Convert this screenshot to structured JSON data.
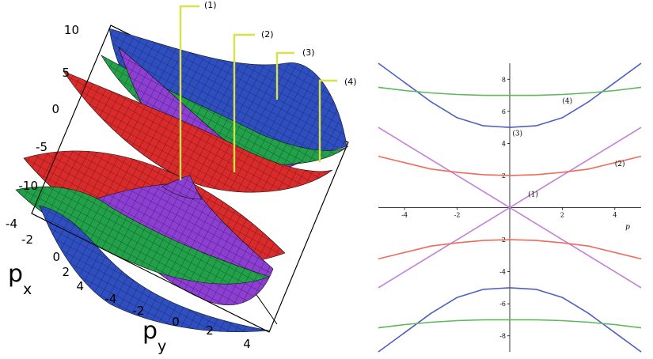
{
  "panel_3d": {
    "callouts": [
      "(1)",
      "(2)",
      "(3)",
      "(4)"
    ],
    "px_ticks": [
      "10",
      "5",
      "0",
      "-5",
      "-10"
    ],
    "px_axis_ticks": [
      "-4",
      "-2",
      "0",
      "2",
      "4"
    ],
    "py_ticks": [
      "-4",
      "-2",
      "0",
      "2",
      "4"
    ],
    "px_label": "p",
    "px_sub": "x",
    "py_label": "p",
    "py_sub": "y",
    "colors": {
      "1": "#8c3fd0",
      "2": "#d92b2b",
      "3": "#2f4fc0",
      "4": "#22a04a",
      "callout_line": "#d6e24a"
    }
  },
  "chart_data": {
    "type": "line",
    "xlabel": "p",
    "xlim": [
      -5,
      5
    ],
    "ylim": [
      -9,
      9
    ],
    "x_ticks": [
      -4,
      -2,
      2,
      4
    ],
    "y_ticks": [
      -8,
      -6,
      -4,
      -2,
      2,
      4,
      6,
      8
    ],
    "grid": false,
    "x": [
      -5,
      -4,
      -3,
      -2,
      -1,
      0,
      1,
      2,
      3,
      4,
      5
    ],
    "series": [
      {
        "name": "(1)",
        "color": "#c47fd8",
        "branch": "upper",
        "values": [
          5.0,
          4.0,
          3.0,
          2.0,
          1.0,
          0.0,
          1.0,
          2.0,
          3.0,
          4.0,
          5.0
        ]
      },
      {
        "name": "(1)",
        "color": "#c47fd8",
        "branch": "lower",
        "values": [
          -5.0,
          -4.0,
          -3.0,
          -2.0,
          -1.0,
          0.0,
          -1.0,
          -2.0,
          -3.0,
          -4.0,
          -5.0
        ]
      },
      {
        "name": "(2)",
        "color": "#ef6b5b",
        "branch": "upper",
        "values": [
          3.2,
          2.8,
          2.4,
          2.2,
          2.05,
          2.0,
          2.05,
          2.2,
          2.4,
          2.8,
          3.2
        ]
      },
      {
        "name": "(2)",
        "color": "#ef6b5b",
        "branch": "lower",
        "values": [
          -3.2,
          -2.8,
          -2.4,
          -2.2,
          -2.05,
          -2.0,
          -2.05,
          -2.2,
          -2.4,
          -2.8,
          -3.2
        ]
      },
      {
        "name": "(3)",
        "color": "#4e5fc0",
        "branch": "upper",
        "values": [
          9.0,
          7.8,
          6.6,
          5.6,
          5.1,
          5.0,
          5.1,
          5.6,
          6.6,
          7.8,
          9.0
        ]
      },
      {
        "name": "(3)",
        "color": "#4e5fc0",
        "branch": "lower",
        "values": [
          -9.0,
          -7.8,
          -6.6,
          -5.6,
          -5.1,
          -5.0,
          -5.1,
          -5.6,
          -6.6,
          -7.8,
          -9.0
        ]
      },
      {
        "name": "(4)",
        "color": "#5cb85c",
        "branch": "upper",
        "values": [
          7.5,
          7.3,
          7.15,
          7.05,
          7.0,
          7.0,
          7.0,
          7.05,
          7.15,
          7.3,
          7.5
        ]
      },
      {
        "name": "(4)",
        "color": "#5cb85c",
        "branch": "lower",
        "values": [
          -7.5,
          -7.3,
          -7.15,
          -7.05,
          -7.0,
          -7.0,
          -7.0,
          -7.05,
          -7.15,
          -7.3,
          -7.5
        ]
      }
    ],
    "annotations": [
      {
        "text": "(1)",
        "x": 0.7,
        "y": 0.7
      },
      {
        "text": "(2)",
        "x": 4.0,
        "y": 2.6
      },
      {
        "text": "(3)",
        "x": 0.1,
        "y": 4.5
      },
      {
        "text": "(4)",
        "x": 2.0,
        "y": 6.5
      }
    ]
  }
}
